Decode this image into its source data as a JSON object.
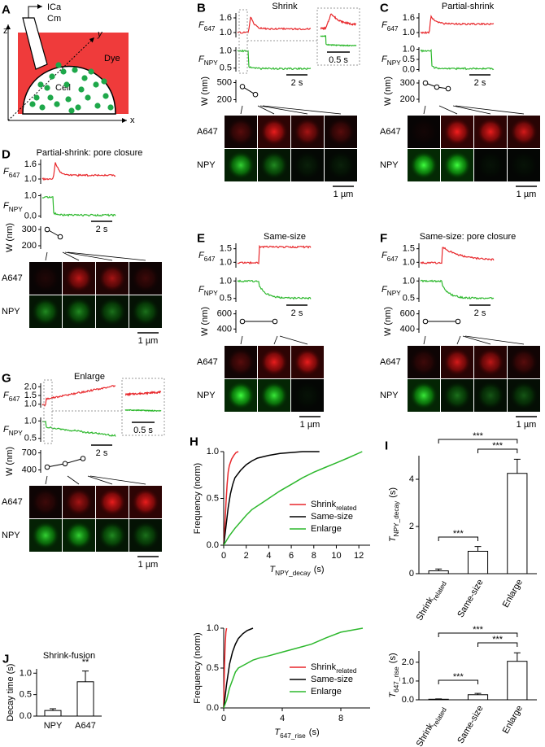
{
  "panels": {
    "A": {
      "label": "A",
      "z": "z",
      "ica": "ICa",
      "cm": "Cm",
      "y": "y",
      "dye": "Dye",
      "cell": "Cell",
      "x": "x"
    },
    "B": {
      "label": "B",
      "title": "Shrink",
      "f647": {
        "main": "F",
        "sub": "647",
        "ylim": [
          0.8,
          1.8
        ],
        "ticks": [
          1.6,
          {
            "value": 1,
            "label": "1.0"
          }
        ]
      },
      "fnpy": {
        "main": "F",
        "sub": "NPY",
        "ylim": [
          0.4,
          1.1
        ],
        "ticks": [
          {
            "value": 1,
            "label": "1.0"
          },
          0.5
        ]
      },
      "w": {
        "label": "W (nm)",
        "ylim": [
          150,
          550
        ],
        "ticks": [
          500,
          200
        ],
        "values": [
          430,
          290
        ]
      },
      "time_scale": "2 s",
      "inset_scale": "0.5 s",
      "rows": [
        "A647",
        "NPY"
      ],
      "space_scale": "1 µm"
    },
    "C": {
      "label": "C",
      "title": "Partial-shrink",
      "f647": {
        "main": "F",
        "sub": "647",
        "ylim": [
          0.8,
          1.8
        ],
        "ticks": [
          1.6,
          {
            "value": 1,
            "label": "1.0"
          }
        ]
      },
      "fnpy": {
        "main": "F",
        "sub": "NPY",
        "ylim": [
          -0.1,
          1.1
        ],
        "ticks": [
          {
            "value": 1,
            "label": "1.0"
          },
          0.5,
          {
            "value": 0,
            "label": "0.0"
          }
        ]
      },
      "w": {
        "label": "W (nm)",
        "ylim": [
          180,
          320
        ],
        "ticks": [
          300,
          200
        ],
        "values": [
          300,
          275,
          265
        ]
      },
      "time_scale": "2 s",
      "rows": [
        "A647",
        "NPY"
      ],
      "space_scale": "1 µm"
    },
    "D": {
      "label": "D",
      "title": "Partial-shrink: pore closure",
      "f647": {
        "main": "F",
        "sub": "647",
        "ylim": [
          0.8,
          1.8
        ],
        "ticks": [
          1.6,
          {
            "value": 1,
            "label": "1.0"
          }
        ]
      },
      "fnpy": {
        "main": "F",
        "sub": "NPY",
        "ylim": [
          -0.1,
          1.1
        ],
        "ticks": [
          {
            "value": 1,
            "label": "1.0"
          },
          {
            "value": 0,
            "label": "0.0"
          }
        ]
      },
      "w": {
        "label": "W (nm)",
        "ylim": [
          180,
          320
        ],
        "ticks": [
          300,
          200
        ],
        "values": [
          300,
          255
        ]
      },
      "time_scale": "2 s",
      "rows": [
        "A647",
        "NPY"
      ],
      "space_scale": "1 µm"
    },
    "E": {
      "label": "E",
      "title": "Same-size",
      "f647": {
        "main": "F",
        "sub": "647",
        "ylim": [
          0.8,
          1.7
        ],
        "ticks": [
          1.5,
          {
            "value": 1,
            "label": "1.0"
          }
        ]
      },
      "fnpy": {
        "main": "F",
        "sub": "NPY",
        "ylim": [
          0.4,
          1.1
        ],
        "ticks": [
          {
            "value": 1,
            "label": "1.0"
          },
          0.5
        ]
      },
      "w": {
        "label": "W (nm)",
        "ylim": [
          350,
          650
        ],
        "ticks": [
          600,
          400
        ],
        "values": [
          500,
          500
        ]
      },
      "time_scale": "2 s",
      "rows": [
        "A647",
        "NPY"
      ],
      "space_scale": "1 µm"
    },
    "F": {
      "label": "F",
      "title": "Same-size: pore closure",
      "f647": {
        "main": "F",
        "sub": "647",
        "ylim": [
          0.8,
          1.7
        ],
        "ticks": [
          1.5,
          {
            "value": 1,
            "label": "1.0"
          }
        ]
      },
      "fnpy": {
        "main": "F",
        "sub": "NPY",
        "ylim": [
          0.4,
          1.1
        ],
        "ticks": [
          {
            "value": 1,
            "label": "1.0"
          },
          0.5
        ]
      },
      "w": {
        "label": "W (nm)",
        "ylim": [
          350,
          650
        ],
        "ticks": [
          600,
          400
        ],
        "values": [
          500,
          500
        ]
      },
      "time_scale": "2 s",
      "rows": [
        "A647",
        "NPY"
      ],
      "space_scale": "1 µm"
    },
    "G": {
      "label": "G",
      "title": "Enlarge",
      "f647": {
        "main": "F",
        "sub": "647",
        "ylim": [
          0.8,
          2.2
        ],
        "ticks": [
          {
            "value": 2,
            "label": "2.0"
          },
          1.5,
          {
            "value": 1,
            "label": "1.0"
          }
        ]
      },
      "fnpy": {
        "main": "F",
        "sub": "NPY",
        "ylim": [
          0.4,
          1.1
        ],
        "ticks": [
          {
            "value": 1,
            "label": "1.0"
          },
          0.5
        ]
      },
      "w": {
        "label": "W (nm)",
        "ylim": [
          350,
          750
        ],
        "ticks": [
          700,
          400
        ],
        "values": [
          450,
          510,
          600
        ]
      },
      "time_scale": "2 s",
      "inset_scale": "0.5 s",
      "rows": [
        "A647",
        "NPY"
      ],
      "space_scale": "1 µm"
    }
  },
  "chart_data": [
    {
      "type": "line",
      "panel": "H",
      "y_label": "Frequency (norm)",
      "x_label": {
        "main": "T",
        "sub": "NPY_decay",
        "unit": "(s)"
      },
      "xlim": [
        0,
        13
      ],
      "xticks": [
        0,
        2,
        4,
        6,
        8,
        10,
        12
      ],
      "ylim": [
        0,
        1
      ],
      "yticks": [
        {
          "value": 0,
          "label": "0.0"
        },
        0.5,
        {
          "value": 1,
          "label": "1.0"
        }
      ],
      "legend": "lower right",
      "series": [
        {
          "name": "Shrink",
          "name_sub": "related",
          "color": "#e8272b",
          "x": [
            0,
            0.1,
            0.2,
            0.3,
            0.4,
            0.5,
            0.7,
            0.9,
            1.1,
            1.3
          ],
          "values": [
            0,
            0.2,
            0.45,
            0.65,
            0.78,
            0.85,
            0.92,
            0.96,
            0.99,
            1
          ]
        },
        {
          "name": "Same-size",
          "color": "#000000",
          "x": [
            0,
            0.2,
            0.4,
            0.6,
            0.8,
            1,
            1.5,
            2,
            2.5,
            3,
            4,
            5,
            6,
            7,
            8.5
          ],
          "values": [
            0,
            0.2,
            0.4,
            0.55,
            0.65,
            0.72,
            0.8,
            0.86,
            0.9,
            0.93,
            0.96,
            0.98,
            0.99,
            1,
            1
          ]
        },
        {
          "name": "Enlarge",
          "color": "#2db82d",
          "x": [
            0,
            0.5,
            1,
            1.5,
            2,
            2.5,
            3,
            3.5,
            4,
            5,
            6,
            7,
            8,
            9,
            10,
            11,
            12.3
          ],
          "values": [
            0,
            0.1,
            0.18,
            0.25,
            0.32,
            0.38,
            0.42,
            0.46,
            0.5,
            0.58,
            0.65,
            0.72,
            0.78,
            0.83,
            0.88,
            0.93,
            1
          ]
        }
      ]
    },
    {
      "type": "line",
      "y_label": "Frequency (norm)",
      "x_label": {
        "main": "T",
        "sub": "647_rise",
        "unit": "(s)"
      },
      "xlim": [
        0,
        10
      ],
      "xticks": [
        0,
        4,
        8
      ],
      "ylim": [
        0,
        1
      ],
      "yticks": [
        {
          "value": 0,
          "label": "0.0"
        },
        0.5,
        {
          "value": 1,
          "label": "1.0"
        }
      ],
      "legend": "lower right",
      "series": [
        {
          "name": "Shrink",
          "name_sub": "related",
          "color": "#e8272b",
          "x": [
            0,
            0.05,
            0.1,
            0.15,
            0.2
          ],
          "values": [
            0,
            0.5,
            0.8,
            0.95,
            1
          ]
        },
        {
          "name": "Same-size",
          "color": "#000000",
          "x": [
            0,
            0.2,
            0.4,
            0.6,
            0.8,
            1,
            1.3,
            1.6,
            2
          ],
          "values": [
            0,
            0.3,
            0.55,
            0.7,
            0.8,
            0.87,
            0.93,
            0.97,
            1
          ]
        },
        {
          "name": "Enlarge",
          "color": "#2db82d",
          "x": [
            0,
            0.2,
            0.4,
            0.6,
            0.8,
            1,
            1.5,
            2,
            2.5,
            3,
            4,
            5,
            6,
            7,
            8,
            9.5
          ],
          "values": [
            0,
            0.1,
            0.25,
            0.35,
            0.45,
            0.5,
            0.55,
            0.6,
            0.63,
            0.65,
            0.7,
            0.75,
            0.8,
            0.88,
            0.95,
            1
          ]
        }
      ]
    },
    {
      "type": "bar",
      "panel": "I",
      "y_label": {
        "main": "T",
        "sub": "NPY_decay",
        "unit": "(s)"
      },
      "categories": [
        "Shrink",
        "Same-size",
        "Enlarge"
      ],
      "category_subs": [
        "related",
        null,
        null
      ],
      "values": [
        0.12,
        0.95,
        4.25
      ],
      "errors": [
        0.08,
        0.2,
        0.6
      ],
      "color": "#ffffff",
      "ylim": [
        0,
        5
      ],
      "yticks": [
        0,
        2,
        4
      ],
      "annotations": [
        "***",
        "***",
        "***"
      ]
    },
    {
      "type": "bar",
      "y_label": {
        "main": "T",
        "sub": "647_rise",
        "unit": "(s)"
      },
      "categories": [
        "Shrink",
        "Same-size",
        "Enlarge"
      ],
      "category_subs": [
        "related",
        null,
        null
      ],
      "values": [
        0.03,
        0.27,
        2.05
      ],
      "errors": [
        0.02,
        0.07,
        0.45
      ],
      "color": "#ffffff",
      "ylim": [
        0,
        2.6
      ],
      "yticks": [
        {
          "value": 0,
          "label": "0.0"
        },
        {
          "value": 1,
          "label": "1.0"
        },
        {
          "value": 2,
          "label": "2.0"
        }
      ],
      "annotations": [
        "***",
        "***",
        "***"
      ]
    },
    {
      "type": "bar",
      "panel": "J",
      "title": "Shrink-fusion",
      "y_label": "Decay time (s)",
      "categories": [
        "NPY",
        "A647"
      ],
      "values": [
        0.13,
        0.8
      ],
      "errors": [
        0.04,
        0.25
      ],
      "color": "#ffffff",
      "ylim": [
        0,
        1.1
      ],
      "yticks": [
        {
          "value": 0,
          "label": "0.0"
        },
        0.5,
        {
          "value": 1,
          "label": "1.0"
        }
      ],
      "annotations": [
        "**"
      ]
    }
  ]
}
